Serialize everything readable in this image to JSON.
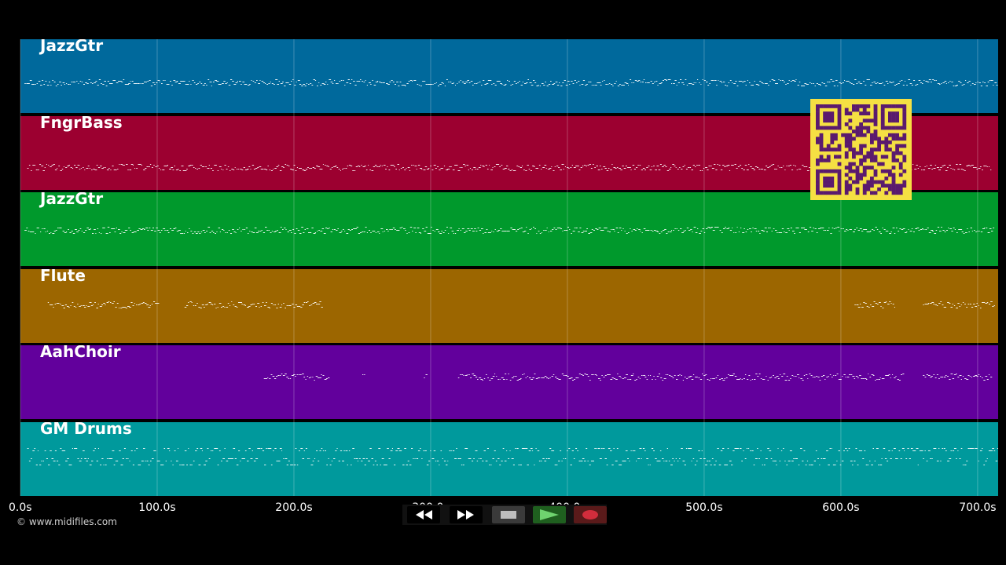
{
  "tracks": [
    {
      "name": "JazzGtr",
      "color": "#00699c"
    },
    {
      "name": "FngrBass",
      "color": "#9c0030"
    },
    {
      "name": "JazzGtr",
      "color": "#00992c"
    },
    {
      "name": "Flute",
      "color": "#9c6600"
    },
    {
      "name": "AahChoir",
      "color": "#62009c"
    },
    {
      "name": "GM Drums",
      "color": "#00999c"
    }
  ],
  "timeline": {
    "ticks": [
      "0.0s",
      "100.0s",
      "200.0s",
      "300.0s",
      "400.0s",
      "500.0s",
      "600.0s",
      "700.0s"
    ],
    "duration_seconds": 715
  },
  "copyright": "© www.midifiles.com",
  "transport": {
    "buttons": [
      {
        "icon": "rewind-icon"
      },
      {
        "icon": "fast-forward-icon"
      },
      {
        "icon": "stop-icon"
      },
      {
        "icon": "play-icon"
      },
      {
        "icon": "record-icon"
      }
    ]
  },
  "colors": {
    "qr_background": "#f5e043",
    "qr_modules": "#5a1a6e",
    "play": "#2e8b2e",
    "record": "#d22d3c"
  }
}
